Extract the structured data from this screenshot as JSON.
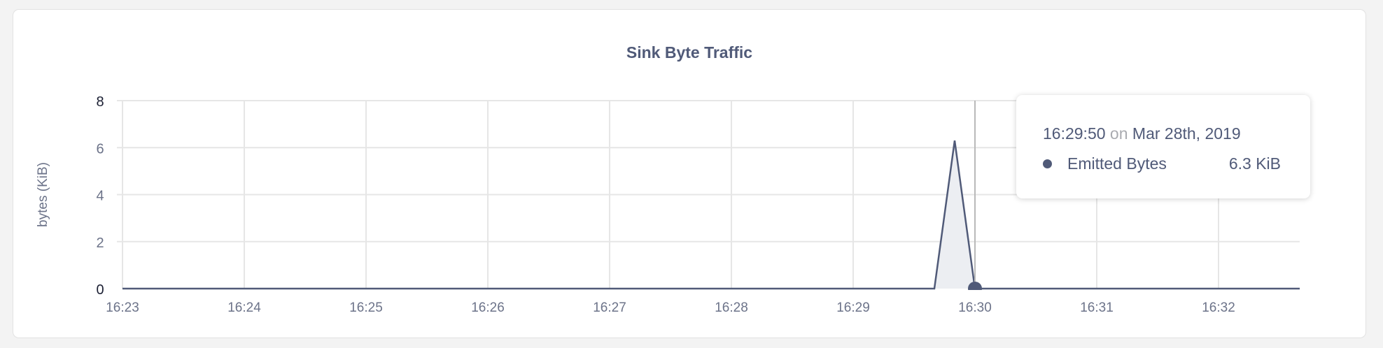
{
  "chart_data": {
    "type": "area",
    "title": "Sink Byte Traffic",
    "ylabel": "bytes (KiB)",
    "xlabel": "",
    "ylim": [
      0,
      8
    ],
    "yticks": [
      "0",
      "2",
      "4",
      "6",
      "8"
    ],
    "xticks": [
      "16:23",
      "16:24",
      "16:25",
      "16:26",
      "16:27",
      "16:28",
      "16:29",
      "16:30",
      "16:31",
      "16:32"
    ],
    "xrange": [
      "16:23:00",
      "16:32:40"
    ],
    "grid": true,
    "series": [
      {
        "name": "Emitted Bytes",
        "color": "#505a78",
        "points": [
          [
            "16:23:00",
            0
          ],
          [
            "16:29:40",
            0
          ],
          [
            "16:29:50",
            6.3
          ],
          [
            "16:30:00",
            0
          ],
          [
            "16:32:40",
            0
          ]
        ]
      }
    ],
    "hover_time": "16:30:00"
  },
  "tooltip": {
    "time": "16:29:50",
    "on": "on",
    "date": "Mar 28th, 2019",
    "series": "Emitted Bytes",
    "value": "6.3 KiB"
  }
}
